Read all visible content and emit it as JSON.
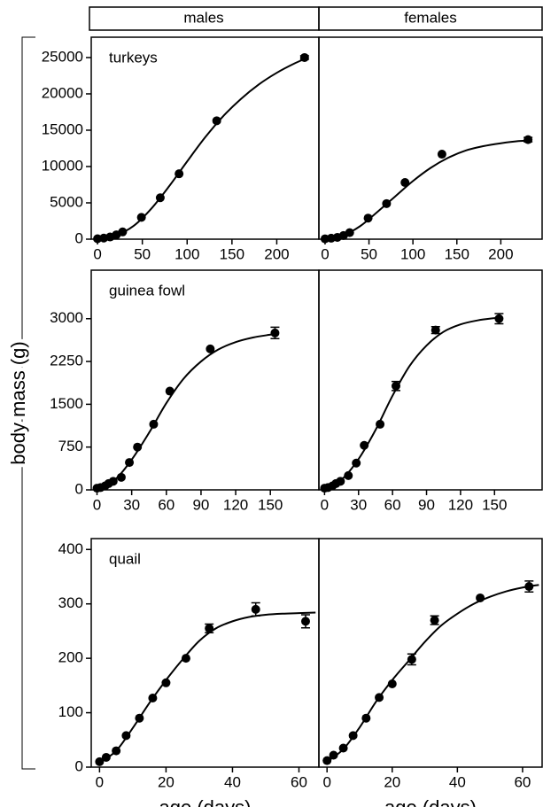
{
  "column_headers": [
    "males",
    "females"
  ],
  "ylabel": "body mass (g)",
  "chart_data": [
    {
      "type": "scatter",
      "title": "turkeys",
      "xlim": [
        -7,
        247
      ],
      "xticks": [
        0,
        50,
        100,
        150,
        200
      ],
      "ylim": [
        0,
        27800
      ],
      "yticks": [
        0,
        5000,
        10000,
        15000,
        20000,
        25000
      ],
      "x": [
        0,
        7,
        14,
        21,
        28,
        49,
        70,
        91,
        133,
        231
      ],
      "values": [
        60,
        150,
        300,
        600,
        1000,
        3000,
        5700,
        9000,
        16300,
        25000
      ],
      "errors": [
        null,
        null,
        null,
        null,
        null,
        null,
        null,
        null,
        null,
        250
      ],
      "fit": {
        "x": [
          0,
          20,
          40,
          60,
          80,
          100,
          120,
          140,
          160,
          180,
          200,
          220,
          235
        ],
        "values": [
          50,
          500,
          1800,
          4200,
          7300,
          10700,
          14000,
          16900,
          19300,
          21300,
          22900,
          24200,
          25000
        ]
      }
    },
    {
      "type": "scatter",
      "xlim": [
        -7,
        247
      ],
      "xticks": [
        0,
        50,
        100,
        150,
        200
      ],
      "ylim": [
        0,
        27800
      ],
      "x": [
        0,
        7,
        14,
        21,
        28,
        49,
        70,
        91,
        133,
        231
      ],
      "values": [
        50,
        130,
        250,
        500,
        900,
        2900,
        4900,
        7800,
        11700,
        13700
      ],
      "errors": [
        null,
        null,
        null,
        null,
        null,
        null,
        null,
        null,
        null,
        300
      ],
      "fit": {
        "x": [
          0,
          20,
          40,
          60,
          80,
          100,
          120,
          140,
          160,
          180,
          200,
          220,
          235
        ],
        "values": [
          50,
          500,
          1800,
          3800,
          5900,
          8000,
          9800,
          11200,
          12200,
          12800,
          13200,
          13500,
          13600
        ]
      }
    },
    {
      "type": "scatter",
      "title": "guinea fowl",
      "xlim": [
        -5,
        192
      ],
      "xticks": [
        0,
        30,
        60,
        90,
        120,
        150
      ],
      "ylim": [
        0,
        3850
      ],
      "yticks": [
        0,
        750,
        1500,
        2250,
        3000
      ],
      "x": [
        0,
        3,
        7,
        10,
        14,
        21,
        28,
        35,
        49,
        63,
        98,
        154
      ],
      "values": [
        30,
        40,
        70,
        110,
        150,
        220,
        480,
        750,
        1150,
        1730,
        2470,
        2750
      ],
      "errors": [
        null,
        null,
        null,
        null,
        null,
        null,
        null,
        null,
        null,
        null,
        null,
        100
      ],
      "fit": {
        "x": [
          0,
          15,
          30,
          45,
          60,
          75,
          90,
          105,
          120,
          135,
          150,
          155
        ],
        "values": [
          30,
          170,
          530,
          1000,
          1520,
          1950,
          2250,
          2460,
          2590,
          2670,
          2720,
          2735
        ]
      }
    },
    {
      "type": "scatter",
      "xlim": [
        -5,
        192
      ],
      "xticks": [
        0,
        30,
        60,
        90,
        120,
        150
      ],
      "ylim": [
        0,
        3850
      ],
      "x": [
        0,
        3,
        7,
        10,
        14,
        21,
        28,
        35,
        49,
        63,
        98,
        154
      ],
      "values": [
        30,
        40,
        70,
        110,
        150,
        250,
        470,
        780,
        1150,
        1820,
        2800,
        3000
      ],
      "errors": [
        null,
        null,
        null,
        null,
        null,
        null,
        null,
        null,
        null,
        80,
        60,
        90
      ],
      "fit": {
        "x": [
          0,
          15,
          30,
          45,
          60,
          75,
          90,
          105,
          120,
          135,
          150,
          155
        ],
        "values": [
          30,
          180,
          540,
          1050,
          1650,
          2170,
          2530,
          2770,
          2900,
          2970,
          3010,
          3020
        ]
      }
    },
    {
      "type": "scatter",
      "title": "quail",
      "xlabel": "age (days)",
      "xlim": [
        -2.5,
        66
      ],
      "xticks": [
        0,
        20,
        40,
        60
      ],
      "ylim": [
        0,
        420
      ],
      "yticks": [
        0,
        100,
        200,
        300,
        400
      ],
      "x": [
        0,
        2,
        5,
        8,
        12,
        16,
        20,
        26,
        33,
        47,
        62
      ],
      "values": [
        10,
        18,
        30,
        58,
        90,
        127,
        155,
        200,
        255,
        290,
        268
      ],
      "errors": [
        null,
        null,
        null,
        null,
        null,
        null,
        null,
        null,
        8,
        12,
        12
      ],
      "fit": {
        "x": [
          0,
          5,
          10,
          15,
          20,
          25,
          30,
          35,
          40,
          45,
          50,
          55,
          60,
          65
        ],
        "values": [
          8,
          30,
          72,
          118,
          160,
          198,
          232,
          255,
          268,
          276,
          280,
          282,
          283,
          284
        ]
      }
    },
    {
      "type": "scatter",
      "xlabel": "age (days)",
      "xlim": [
        -2.5,
        66
      ],
      "xticks": [
        0,
        20,
        40,
        60
      ],
      "ylim": [
        0,
        420
      ],
      "x": [
        0,
        2,
        5,
        8,
        12,
        16,
        20,
        26,
        33,
        47,
        62
      ],
      "values": [
        12,
        22,
        35,
        58,
        90,
        128,
        153,
        198,
        270,
        311,
        332
      ],
      "errors": [
        null,
        null,
        null,
        null,
        null,
        null,
        null,
        10,
        8,
        null,
        10
      ],
      "fit": {
        "x": [
          0,
          5,
          10,
          15,
          20,
          25,
          30,
          35,
          40,
          45,
          50,
          55,
          60,
          65
        ],
        "values": [
          10,
          33,
          73,
          120,
          160,
          195,
          230,
          260,
          282,
          300,
          313,
          323,
          330,
          335
        ]
      }
    }
  ]
}
